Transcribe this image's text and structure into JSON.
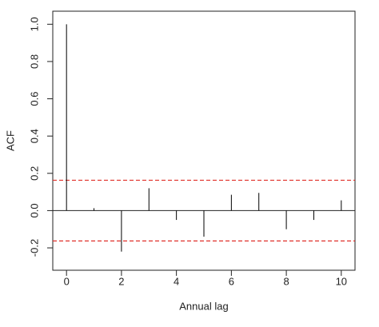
{
  "chart_data": {
    "type": "acf",
    "x_label": "Annual lag",
    "y_label": "ACF",
    "x": [
      0,
      1,
      2,
      3,
      4,
      5,
      6,
      7,
      8,
      9,
      10
    ],
    "values": [
      1.0,
      0.013,
      -0.22,
      0.12,
      -0.05,
      -0.14,
      0.085,
      0.095,
      -0.1,
      -0.05,
      0.055
    ],
    "color": "#000000",
    "confidence_bounds": [
      0.163,
      -0.163
    ],
    "confidence_color": "#e0302a",
    "xlim": [
      -0.5,
      10.5
    ],
    "xticks": [
      0,
      2,
      4,
      6,
      8,
      10
    ],
    "ylim": [
      -0.32,
      1.07
    ],
    "yticks": [
      -0.2,
      {
        "value": 0,
        "label": "0.0"
      },
      0.2,
      0.4,
      0.6,
      0.8,
      {
        "value": 1,
        "label": "1.0"
      }
    ]
  }
}
